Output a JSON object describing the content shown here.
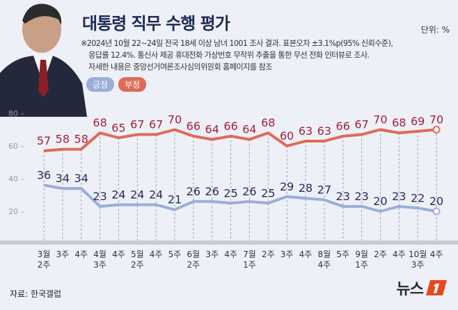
{
  "header": {
    "title": "대통령 직무 수행 평가",
    "unit": "단위: %",
    "note": [
      "※2024년 10월 22~24일 전국 18세 이상 남녀 1001 조사 결과. 표본오차 ±3.1%p(95% 신뢰수준),",
      "응답률 12.4%. 통신사 제공 휴대전화 가상번호 무작위 추출을 통한 무선 전화 인터뷰로 조사.",
      "자세한 내용은 중앙선거여론조사심의위원회 홈페이지를 참조"
    ]
  },
  "footer": {
    "source": "자료: 한국갤럽",
    "logo": "뉴스1"
  },
  "chart_data": {
    "type": "line",
    "title": "대통령 직무 수행 평가",
    "ylim": [
      20,
      80
    ],
    "yticks": [
      20,
      40,
      60,
      80
    ],
    "grid": false,
    "legend_placement": "top-left",
    "categories": [
      [
        "3월",
        "2주"
      ],
      [
        "3주"
      ],
      [
        "4주"
      ],
      [
        "4월",
        "3주"
      ],
      [
        "4주"
      ],
      [
        "5월",
        "2주"
      ],
      [
        "4주"
      ],
      [
        "5주"
      ],
      [
        "6월",
        "2주"
      ],
      [
        "3주"
      ],
      [
        "4주"
      ],
      [
        "7월",
        "1주"
      ],
      [
        "2주"
      ],
      [
        "3주"
      ],
      [
        "4주"
      ],
      [
        "8월",
        "4주"
      ],
      [
        "5주"
      ],
      [
        "9월",
        "1주"
      ],
      [
        "2주"
      ],
      [
        "4주"
      ],
      [
        "10월",
        "3주"
      ],
      [
        "4주"
      ]
    ],
    "series": [
      {
        "name": "긍정",
        "color": "#9aaed8",
        "label_color": "#1f2d5a",
        "values": [
          36,
          34,
          34,
          23,
          24,
          24,
          24,
          21,
          26,
          26,
          25,
          26,
          25,
          29,
          28,
          27,
          23,
          23,
          20,
          23,
          22,
          20
        ]
      },
      {
        "name": "부정",
        "color": "#e06a55",
        "label_color": "#a51f36",
        "values": [
          57,
          58,
          58,
          68,
          65,
          67,
          67,
          70,
          66,
          64,
          66,
          64,
          68,
          60,
          63,
          63,
          66,
          67,
          70,
          68,
          69,
          70
        ]
      }
    ]
  }
}
